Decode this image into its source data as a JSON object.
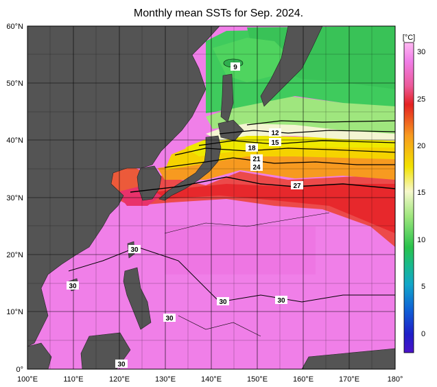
{
  "title": "Monthly mean SSTs for Sep. 2024.",
  "lat_labels": [
    "60°N",
    "50°N",
    "40°N",
    "30°N",
    "20°N",
    "10°N",
    "0°"
  ],
  "lon_labels": [
    "100°E",
    "110°E",
    "120°E",
    "130°E",
    "140°E",
    "150°E",
    "160°E",
    "170°E",
    "180°"
  ],
  "colorbar": {
    "unit": "[°C]",
    "ticks": [
      "30",
      "25",
      "20",
      "15",
      "10",
      "5",
      "0"
    ]
  },
  "contour_labels": [
    "9",
    "12",
    "15",
    "18",
    "21",
    "24",
    "27",
    "30",
    "30",
    "30",
    "30",
    "30",
    "30"
  ],
  "colors": {
    "land": "#545454",
    "warm_30": "#ef7be6",
    "sst_27": "#ec2e2e",
    "sst_24": "#f79a20",
    "sst_20": "#f4e600",
    "sst_15": "#f4f6cf",
    "sst_12": "#8fe474",
    "sst_9": "#3ecb5a"
  }
}
